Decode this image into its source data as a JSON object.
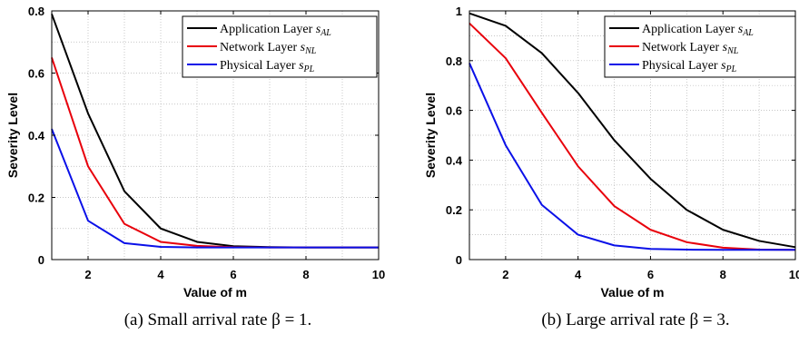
{
  "chart_data": [
    {
      "type": "line",
      "caption": "(a)  Small arrival rate β = 1.",
      "xlabel": "Value of m",
      "ylabel": "Severity Level",
      "xlim": [
        1,
        10
      ],
      "ylim": [
        0,
        0.8
      ],
      "xticks": [
        2,
        4,
        6,
        8,
        10
      ],
      "xtick_labels": [
        "2",
        "4",
        "6",
        "8",
        "10"
      ],
      "yticks": [
        0,
        0.2,
        0.4,
        0.6,
        0.8
      ],
      "ytick_labels": [
        "0",
        "0.2",
        "0.4",
        "0.6",
        "0.8"
      ],
      "grid": "dotted",
      "legend_position": "top-right",
      "x": [
        1,
        2,
        3,
        4,
        5,
        6,
        7,
        8,
        9,
        10
      ],
      "series": [
        {
          "name": "Application Layer s_AL",
          "legend_main": "Application Layer ",
          "legend_var": "s",
          "legend_sub": "AL",
          "color": "#000000",
          "values": [
            0.79,
            0.47,
            0.22,
            0.1,
            0.057,
            0.043,
            0.04,
            0.039,
            0.039,
            0.039
          ]
        },
        {
          "name": "Network Layer s_NL",
          "legend_main": "Network Layer ",
          "legend_var": "s",
          "legend_sub": "NL",
          "color": "#e8000b",
          "values": [
            0.65,
            0.3,
            0.115,
            0.057,
            0.044,
            0.04,
            0.039,
            0.039,
            0.039,
            0.039
          ]
        },
        {
          "name": "Physical Layer s_PL",
          "legend_main": "Physical Layer ",
          "legend_var": "s",
          "legend_sub": "PL",
          "color": "#0a10e8",
          "values": [
            0.42,
            0.125,
            0.053,
            0.041,
            0.039,
            0.039,
            0.039,
            0.039,
            0.039,
            0.039
          ]
        }
      ]
    },
    {
      "type": "line",
      "caption": "(b)  Large arrival rate β = 3.",
      "xlabel": "Value of m",
      "ylabel": "Severity Level",
      "xlim": [
        1,
        10
      ],
      "ylim": [
        0,
        1
      ],
      "xticks": [
        2,
        4,
        6,
        8,
        10
      ],
      "xtick_labels": [
        "2",
        "4",
        "6",
        "8",
        "10"
      ],
      "yticks": [
        0,
        0.2,
        0.4,
        0.6,
        0.8,
        1
      ],
      "ytick_labels": [
        "0",
        "0.2",
        "0.4",
        "0.6",
        "0.8",
        "1"
      ],
      "grid": "dotted",
      "legend_position": "top-right",
      "x": [
        1,
        2,
        3,
        4,
        5,
        6,
        7,
        8,
        9,
        10
      ],
      "series": [
        {
          "name": "Application Layer s_AL",
          "legend_main": "Application Layer ",
          "legend_var": "s",
          "legend_sub": "AL",
          "color": "#000000",
          "values": [
            0.99,
            0.94,
            0.83,
            0.67,
            0.48,
            0.325,
            0.2,
            0.12,
            0.075,
            0.05
          ]
        },
        {
          "name": "Network Layer s_NL",
          "legend_main": "Network Layer ",
          "legend_var": "s",
          "legend_sub": "NL",
          "color": "#e8000b",
          "values": [
            0.95,
            0.81,
            0.59,
            0.375,
            0.215,
            0.12,
            0.07,
            0.048,
            0.04,
            0.039
          ]
        },
        {
          "name": "Physical Layer s_PL",
          "legend_main": "Physical Layer ",
          "legend_var": "s",
          "legend_sub": "PL",
          "color": "#0a10e8",
          "values": [
            0.79,
            0.46,
            0.22,
            0.1,
            0.057,
            0.043,
            0.04,
            0.039,
            0.039,
            0.039
          ]
        }
      ]
    }
  ]
}
